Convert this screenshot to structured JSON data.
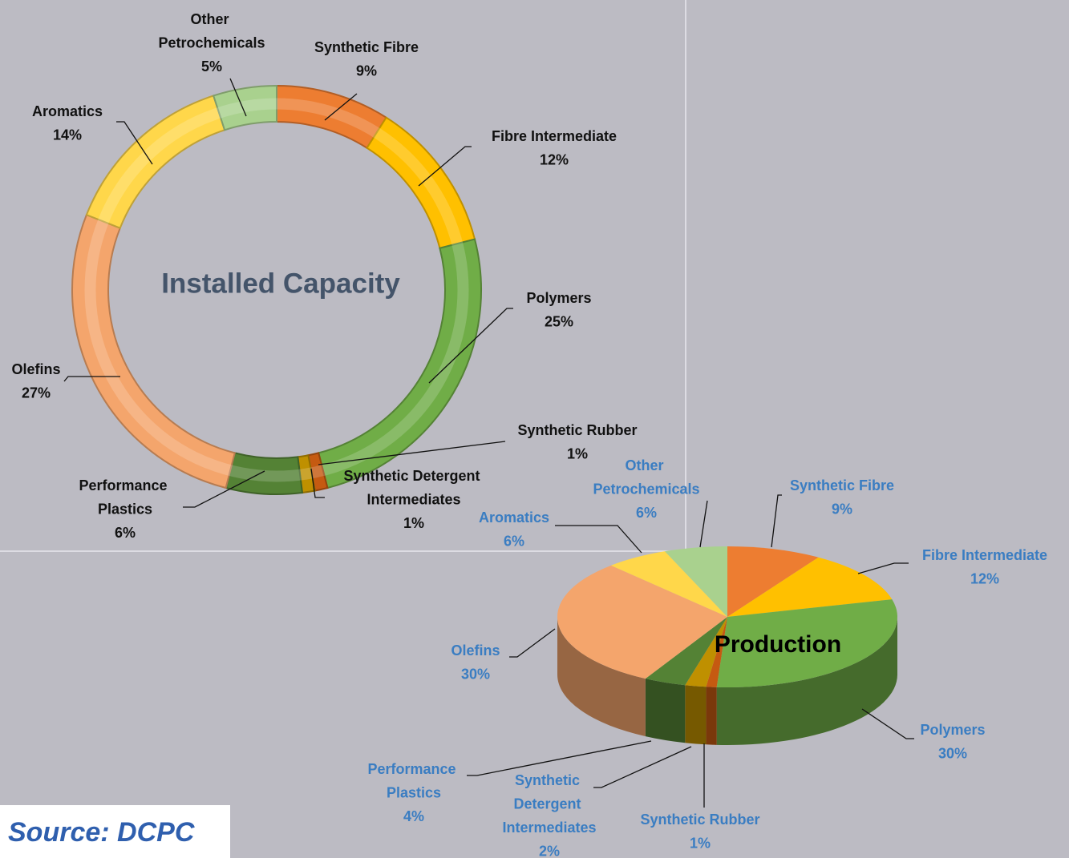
{
  "chart_data": [
    {
      "type": "donut",
      "title": "Installed Capacity",
      "categories": [
        "Synthetic Fibre",
        "Fibre Intermediate",
        "Polymers",
        "Synthetic Rubber",
        "Synthetic Detergent Intermediates",
        "Performance Plastics",
        "Olefins",
        "Aromatics",
        "Other Petrochemicals"
      ],
      "values": [
        9,
        12,
        25,
        1,
        1,
        6,
        27,
        14,
        5
      ],
      "value_labels": [
        "9%",
        "12%",
        "25%",
        "1%",
        "1%",
        "6%",
        "27%",
        "14%",
        "5%"
      ],
      "colors": [
        "#ed7d31",
        "#ffc000",
        "#70ad47",
        "#c55a11",
        "#bf9000",
        "#548235",
        "#f4a56c",
        "#ffd74a",
        "#a9d18e"
      ]
    },
    {
      "type": "pie3d",
      "title": "Production",
      "categories": [
        "Synthetic Fibre",
        "Fibre Intermediate",
        "Polymers",
        "Synthetic Rubber",
        "Synthetic Detergent Intermediates",
        "Performance Plastics",
        "Olefins",
        "Aromatics",
        "Other Petrochemicals"
      ],
      "values": [
        9,
        12,
        30,
        1,
        2,
        4,
        30,
        6,
        6
      ],
      "value_labels": [
        "9%",
        "12%",
        "30%",
        "1%",
        "2%",
        "4%",
        "30%",
        "6%",
        "6%"
      ],
      "colors": [
        "#ed7d31",
        "#ffc000",
        "#70ad47",
        "#c55a11",
        "#bf9000",
        "#548235",
        "#f4a56c",
        "#ffd74a",
        "#a9d18e"
      ]
    }
  ],
  "source": "Source: DCPC"
}
